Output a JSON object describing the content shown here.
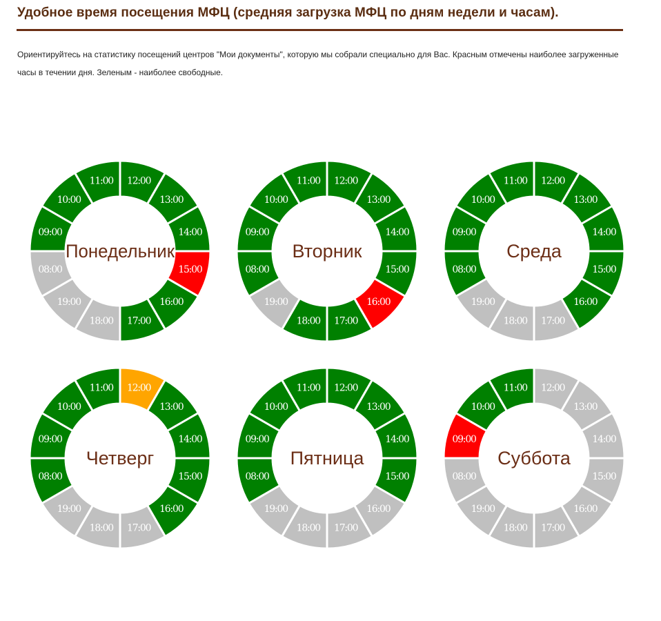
{
  "header": {
    "title": "Удобное время посещения МФЦ (средняя загрузка МФЦ по дням недели и часам).",
    "intro": "Ориентируйтесь на статистику посещений центров \"Мои документы\", которую мы собрали специально для Вас. Красным отмечены наиболее загруженные часы в течении дня. Зеленым - наиболее свободные."
  },
  "colors": {
    "free": "#008000",
    "busy": "#ff0000",
    "medium": "#ffa500",
    "closed": "#c0c0c0",
    "day_label": "#6b2e16",
    "title": "#5b2e12"
  },
  "chart_data": [
    {
      "type": "donut",
      "title": "Понедельник",
      "categories": [
        "12:00",
        "13:00",
        "14:00",
        "15:00",
        "16:00",
        "17:00",
        "18:00",
        "19:00",
        "08:00",
        "09:00",
        "10:00",
        "11:00"
      ],
      "status": [
        "free",
        "free",
        "free",
        "busy",
        "free",
        "free",
        "closed",
        "closed",
        "closed",
        "free",
        "free",
        "free"
      ]
    },
    {
      "type": "donut",
      "title": "Вторник",
      "categories": [
        "12:00",
        "13:00",
        "14:00",
        "15:00",
        "16:00",
        "17:00",
        "18:00",
        "19:00",
        "08:00",
        "09:00",
        "10:00",
        "11:00"
      ],
      "status": [
        "free",
        "free",
        "free",
        "free",
        "busy",
        "free",
        "free",
        "closed",
        "free",
        "free",
        "free",
        "free"
      ]
    },
    {
      "type": "donut",
      "title": "Среда",
      "categories": [
        "12:00",
        "13:00",
        "14:00",
        "15:00",
        "16:00",
        "17:00",
        "18:00",
        "19:00",
        "08:00",
        "09:00",
        "10:00",
        "11:00"
      ],
      "status": [
        "free",
        "free",
        "free",
        "free",
        "free",
        "closed",
        "closed",
        "closed",
        "free",
        "free",
        "free",
        "free"
      ]
    },
    {
      "type": "donut",
      "title": "Четверг",
      "categories": [
        "12:00",
        "13:00",
        "14:00",
        "15:00",
        "16:00",
        "17:00",
        "18:00",
        "19:00",
        "08:00",
        "09:00",
        "10:00",
        "11:00"
      ],
      "status": [
        "medium",
        "free",
        "free",
        "free",
        "free",
        "closed",
        "closed",
        "closed",
        "free",
        "free",
        "free",
        "free"
      ]
    },
    {
      "type": "donut",
      "title": "Пятница",
      "categories": [
        "12:00",
        "13:00",
        "14:00",
        "15:00",
        "16:00",
        "17:00",
        "18:00",
        "19:00",
        "08:00",
        "09:00",
        "10:00",
        "11:00"
      ],
      "status": [
        "free",
        "free",
        "free",
        "free",
        "closed",
        "closed",
        "closed",
        "closed",
        "free",
        "free",
        "free",
        "free"
      ]
    },
    {
      "type": "donut",
      "title": "Суббота",
      "categories": [
        "12:00",
        "13:00",
        "14:00",
        "15:00",
        "16:00",
        "17:00",
        "18:00",
        "19:00",
        "08:00",
        "09:00",
        "10:00",
        "11:00"
      ],
      "status": [
        "closed",
        "closed",
        "closed",
        "closed",
        "closed",
        "closed",
        "closed",
        "closed",
        "closed",
        "busy",
        "free",
        "free"
      ]
    }
  ]
}
